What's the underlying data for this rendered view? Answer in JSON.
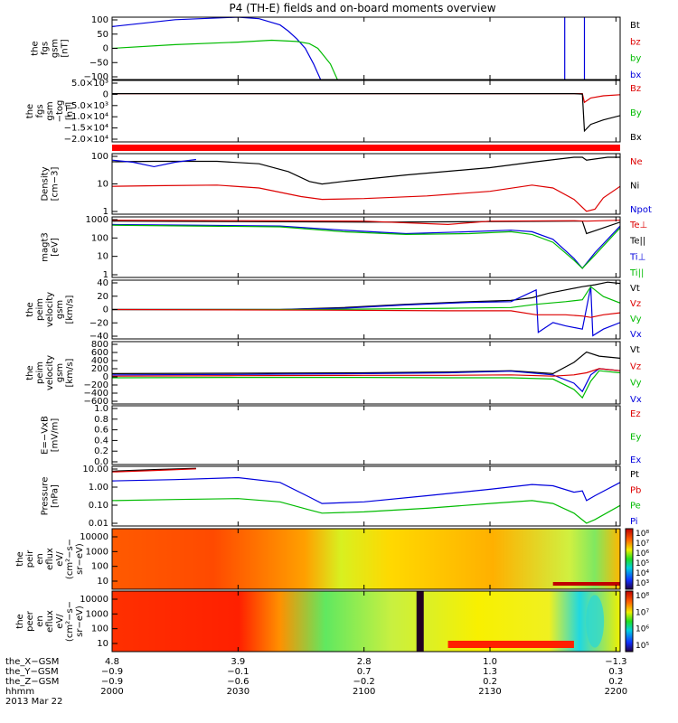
{
  "title": "P4 (TH-E) fields and on-board moments overview",
  "chart_data": [
    {
      "type": "line",
      "ylabel_lines": [
        "the",
        "fgs",
        "gsm",
        "[nT]"
      ],
      "yticks": [
        "100",
        "50",
        "0",
        "−50",
        "−100"
      ],
      "ylim": [
        -100,
        100
      ],
      "legend": [
        {
          "label": "Bt",
          "color": "#000000"
        },
        {
          "label": "bz",
          "color": "#dd0000"
        },
        {
          "label": "by",
          "color": "#00bb00"
        },
        {
          "label": "bx",
          "color": "#0000dd"
        }
      ],
      "series": [
        {
          "label": "bx",
          "color": "#0000dd",
          "x": [
            0,
            15,
            30,
            35,
            40,
            42,
            44,
            46,
            48,
            50
          ],
          "y": [
            70,
            92,
            100,
            95,
            75,
            55,
            30,
            0,
            -50,
            -110
          ]
        },
        {
          "label": "by",
          "color": "#00bb00",
          "x": [
            0,
            15,
            30,
            38,
            44,
            47,
            49,
            52,
            54
          ],
          "y": [
            0,
            12,
            20,
            26,
            22,
            15,
            0,
            -50,
            -110
          ]
        },
        {
          "label": "bx",
          "color": "#0000dd",
          "x": [
            107.8,
            107.8,
            107.8
          ],
          "y": [
            -110,
            100,
            100
          ]
        },
        {
          "label": "bx",
          "color": "#0000dd",
          "x": [
            112.5,
            112.5,
            112.5
          ],
          "y": [
            -110,
            100,
            100
          ]
        }
      ]
    },
    {
      "type": "line",
      "ylabel_lines": [
        "the",
        "fgs",
        "gsm",
        "−tog",
        "[nT]"
      ],
      "yticks": [
        "5.0×10³",
        "0",
        "−5.0×10³",
        "−1.0×10⁴",
        "−1.5×10⁴",
        "−2.0×10⁴"
      ],
      "ylim": [
        -22000,
        6000
      ],
      "legend": [
        {
          "label": "Bz",
          "color": "#dd0000"
        },
        {
          "label": "By",
          "color": "#00bb00"
        },
        {
          "label": "Bx",
          "color": "#000000"
        }
      ],
      "series": [
        {
          "label": "Bz",
          "color": "#dd0000",
          "x": [
            0,
            112,
            112.5,
            114,
            117,
            121
          ],
          "y": [
            0,
            0,
            -4000,
            -2000,
            -1000,
            -500
          ]
        },
        {
          "label": "Bx",
          "color": "#000000",
          "x": [
            0,
            110,
            112,
            112.5,
            114,
            117,
            121
          ],
          "y": [
            0,
            0,
            -200,
            -17000,
            -14000,
            -12000,
            -10000
          ]
        }
      ]
    },
    {
      "type": "line",
      "ylabel_lines": [
        "Density",
        "[cm−3]"
      ],
      "yticks": [
        "100",
        "10",
        "1"
      ],
      "ylog": true,
      "ylim": [
        0.1,
        500
      ],
      "legend": [
        {
          "label": "Ne",
          "color": "#dd0000"
        },
        {
          "label": "Ni",
          "color": "#000000"
        },
        {
          "label": "Npot",
          "color": "#0000dd"
        }
      ],
      "series": [
        {
          "label": "Ni",
          "color": "#000000",
          "x": [
            0,
            10,
            25,
            35,
            42,
            47,
            50,
            55,
            70,
            90,
            100,
            110,
            112,
            113,
            118,
            121
          ],
          "y": [
            160,
            170,
            170,
            120,
            40,
            10,
            7,
            10,
            25,
            70,
            150,
            300,
            300,
            200,
            300,
            300
          ]
        },
        {
          "label": "Ne",
          "color": "#dd0000",
          "x": [
            0,
            10,
            25,
            35,
            45,
            50,
            60,
            75,
            90,
            100,
            105,
            110,
            113,
            115,
            117,
            121
          ],
          "y": [
            5,
            5.5,
            6,
            4,
            1.2,
            0.8,
            0.9,
            1.3,
            2.5,
            6,
            4,
            0.8,
            0.15,
            0.2,
            1,
            5
          ]
        },
        {
          "label": "Npot",
          "color": "#0000dd",
          "x": [
            0,
            5,
            10,
            15,
            20
          ],
          "y": [
            200,
            150,
            80,
            150,
            220
          ]
        }
      ]
    },
    {
      "type": "line",
      "ylabel_lines": [
        "magt3",
        "[eV]"
      ],
      "yticks": [
        "1000",
        "100",
        "10",
        "1"
      ],
      "ylog": true,
      "ylim": [
        1,
        1500
      ],
      "legend": [
        {
          "label": "Te⊥",
          "color": "#dd0000"
        },
        {
          "label": "Te||",
          "color": "#000000"
        },
        {
          "label": "Ti⊥",
          "color": "#0000dd"
        },
        {
          "label": "Ti||",
          "color": "#00bb00"
        }
      ],
      "series": [
        {
          "label": "Te||",
          "color": "#000000",
          "x": [
            0,
            30,
            60,
            90,
            110,
            112,
            113,
            121
          ],
          "y": [
            900,
            850,
            800,
            850,
            900,
            900,
            200,
            800
          ]
        },
        {
          "label": "Te⊥",
          "color": "#dd0000",
          "x": [
            0,
            30,
            60,
            80,
            90,
            110,
            113,
            121
          ],
          "y": [
            1000,
            950,
            900,
            600,
            900,
            950,
            900,
            1000
          ]
        },
        {
          "label": "Ti⊥",
          "color": "#0000dd",
          "x": [
            0,
            20,
            40,
            55,
            70,
            85,
            95,
            100,
            105,
            110,
            112,
            115,
            121
          ],
          "y": [
            600,
            550,
            500,
            300,
            200,
            250,
            300,
            250,
            100,
            10,
            3,
            20,
            500
          ]
        },
        {
          "label": "Ti||",
          "color": "#00bb00",
          "x": [
            0,
            20,
            40,
            55,
            70,
            85,
            95,
            100,
            105,
            110,
            112,
            115,
            121
          ],
          "y": [
            550,
            500,
            450,
            250,
            180,
            200,
            250,
            180,
            70,
            8,
            3,
            15,
            400
          ]
        }
      ]
    },
    {
      "type": "line",
      "ylabel_lines": [
        "the",
        "peim",
        "velocity",
        "gsm",
        "[km/s]"
      ],
      "yticks": [
        "40",
        "20",
        "0",
        "−20",
        "−40"
      ],
      "ylim": [
        -45,
        45
      ],
      "legend": [
        {
          "label": "Vt",
          "color": "#000000"
        },
        {
          "label": "Vz",
          "color": "#dd0000"
        },
        {
          "label": "Vy",
          "color": "#00bb00"
        },
        {
          "label": "Vx",
          "color": "#0000dd"
        }
      ],
      "series": [
        {
          "label": "Vt",
          "color": "#000000",
          "x": [
            0,
            40,
            55,
            70,
            85,
            95,
            100,
            104,
            108,
            112,
            115,
            118,
            121
          ],
          "y": [
            0,
            0,
            3,
            8,
            12,
            14,
            18,
            25,
            30,
            35,
            38,
            42,
            40
          ]
        },
        {
          "label": "Vx",
          "color": "#0000dd",
          "x": [
            0,
            40,
            55,
            70,
            85,
            95,
            101,
            101.5,
            105,
            108,
            112,
            114,
            114.5,
            117,
            121
          ],
          "y": [
            0,
            0,
            2,
            7,
            11,
            12,
            30,
            -35,
            -20,
            -25,
            -30,
            35,
            -40,
            -30,
            -20
          ]
        },
        {
          "label": "Vy",
          "color": "#00bb00",
          "x": [
            0,
            50,
            80,
            95,
            101,
            108,
            112,
            114,
            117,
            121
          ],
          "y": [
            0,
            0,
            2,
            3,
            8,
            12,
            15,
            35,
            20,
            10
          ]
        },
        {
          "label": "Vz",
          "color": "#dd0000",
          "x": [
            0,
            50,
            80,
            95,
            101,
            108,
            112,
            114,
            117,
            121
          ],
          "y": [
            0,
            -1,
            -2,
            -2,
            -8,
            -8,
            -10,
            -12,
            -8,
            -5
          ]
        }
      ]
    },
    {
      "type": "line",
      "ylabel_lines": [
        "the",
        "peim",
        "velocity",
        "gsm",
        "[km/s]"
      ],
      "yticks": [
        "800",
        "600",
        "400",
        "200",
        "0",
        "−200",
        "−400",
        "−600"
      ],
      "ylim": [
        -650,
        850
      ],
      "legend": [
        {
          "label": "Vt",
          "color": "#000000"
        },
        {
          "label": "Vz",
          "color": "#dd0000"
        },
        {
          "label": "Vy",
          "color": "#00bb00"
        },
        {
          "label": "Vx",
          "color": "#0000dd"
        }
      ],
      "series": [
        {
          "label": "Vt",
          "color": "#000000",
          "x": [
            0,
            30,
            60,
            80,
            95,
            105,
            110,
            113,
            116,
            121
          ],
          "y": [
            80,
            90,
            100,
            120,
            150,
            80,
            350,
            600,
            500,
            450
          ]
        },
        {
          "label": "Vx",
          "color": "#0000dd",
          "x": [
            0,
            30,
            60,
            80,
            95,
            105,
            110,
            112,
            114,
            116,
            121
          ],
          "y": [
            50,
            60,
            80,
            100,
            140,
            50,
            -150,
            -350,
            50,
            200,
            150
          ]
        },
        {
          "label": "Vy",
          "color": "#00bb00",
          "x": [
            0,
            30,
            60,
            80,
            95,
            105,
            110,
            112,
            114,
            116,
            121
          ],
          "y": [
            -20,
            -10,
            -10,
            -20,
            -20,
            -50,
            -300,
            -500,
            -100,
            150,
            100
          ]
        },
        {
          "label": "Vz",
          "color": "#dd0000",
          "x": [
            0,
            30,
            60,
            80,
            95,
            105,
            110,
            113,
            116,
            121
          ],
          "y": [
            20,
            30,
            40,
            40,
            50,
            20,
            50,
            100,
            200,
            150
          ]
        }
      ]
    },
    {
      "type": "line",
      "ylabel_lines": [
        "E=−VxB",
        "[mV/m]"
      ],
      "yticks": [
        "1.0",
        "0.8",
        "0.6",
        "0.4",
        "0.2",
        "0.0"
      ],
      "ylim": [
        -0.05,
        1.05
      ],
      "legend": [
        {
          "label": "Ez",
          "color": "#dd0000"
        },
        {
          "label": "Ey",
          "color": "#00bb00"
        },
        {
          "label": "Ex",
          "color": "#0000dd"
        }
      ],
      "series": []
    },
    {
      "type": "line",
      "ylabel_lines": [
        "Pressure",
        "[nPa]"
      ],
      "yticks": [
        "10.00",
        "1.00",
        "0.10",
        "0.01"
      ],
      "ylog": true,
      "ylim": [
        0.008,
        40
      ],
      "legend": [
        {
          "label": "Pt",
          "color": "#000000"
        },
        {
          "label": "Pb",
          "color": "#dd0000"
        },
        {
          "label": "Pe",
          "color": "#00bb00"
        },
        {
          "label": "Pi",
          "color": "#0000dd"
        }
      ],
      "series": [
        {
          "label": "Pt",
          "color": "#000000",
          "x": [
            0,
            10,
            20
          ],
          "y": [
            20,
            25,
            30
          ]
        },
        {
          "label": "Pb",
          "color": "#dd0000",
          "x": [
            0,
            10,
            20
          ],
          "y": [
            18,
            22,
            28
          ]
        },
        {
          "label": "Pi",
          "color": "#0000dd",
          "x": [
            0,
            15,
            30,
            40,
            47,
            50,
            60,
            75,
            90,
            100,
            105,
            110,
            112,
            113,
            115,
            121
          ],
          "y": [
            5,
            6,
            8,
            4,
            0.5,
            0.2,
            0.25,
            0.6,
            1.5,
            3,
            2.5,
            1,
            1.2,
            0.3,
            0.6,
            4
          ]
        },
        {
          "label": "Pe",
          "color": "#00bb00",
          "x": [
            0,
            15,
            30,
            40,
            47,
            50,
            60,
            75,
            90,
            100,
            105,
            110,
            113,
            115,
            121
          ],
          "y": [
            0.3,
            0.35,
            0.4,
            0.25,
            0.08,
            0.05,
            0.06,
            0.1,
            0.2,
            0.3,
            0.2,
            0.05,
            0.012,
            0.02,
            0.15
          ]
        }
      ]
    },
    {
      "type": "heatmap",
      "ylabel_lines": [
        "the",
        "peir",
        "en",
        "eflux",
        "eV/",
        "(cm²−s−",
        "sr−eV)"
      ],
      "yticks": [
        "10000",
        "1000",
        "100",
        "10"
      ],
      "colorbar_ticks": [
        "10⁸",
        "10⁷",
        "10⁶",
        "10⁵",
        "10⁴",
        "10³"
      ]
    },
    {
      "type": "heatmap",
      "ylabel_lines": [
        "the",
        "peer",
        "en",
        "eflux",
        "eV/",
        "(cm²−s−",
        "sr−eV)"
      ],
      "yticks": [
        "10000",
        "1000",
        "100",
        "10"
      ],
      "colorbar_ticks": [
        "10⁸",
        "10⁷",
        "10⁶",
        "10⁵"
      ]
    }
  ],
  "xaxis": {
    "xlim": [
      0,
      121
    ],
    "tick_x": [
      0,
      30,
      60,
      90,
      120
    ],
    "rows": [
      {
        "label": "the_X−GSM",
        "values": [
          "4.8",
          "3.9",
          "2.8",
          "1.0",
          "−1.3"
        ]
      },
      {
        "label": "the_Y−GSM",
        "values": [
          "−0.9",
          "−0.1",
          "0.7",
          "1.3",
          "0.3"
        ]
      },
      {
        "label": "the_Z−GSM",
        "values": [
          "−0.9",
          "−0.6",
          "−0.2",
          "0.2",
          "0.2"
        ]
      },
      {
        "label": "hhmm",
        "values": [
          "2000",
          "2030",
          "2100",
          "2130",
          "2200"
        ]
      }
    ],
    "date": "2013 Mar 22"
  }
}
